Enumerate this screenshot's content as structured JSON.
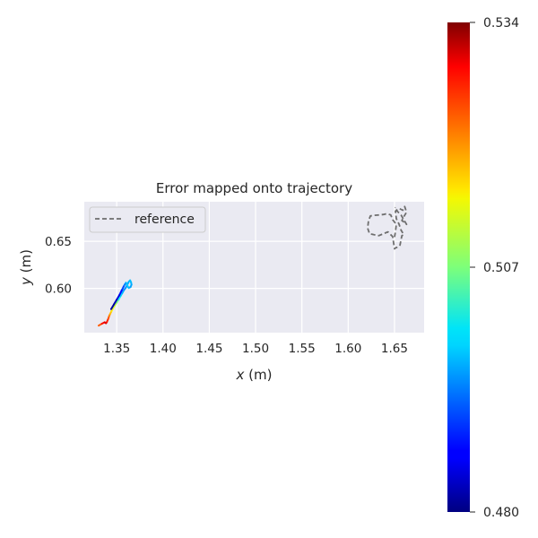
{
  "chart_data": {
    "type": "line",
    "title": "Error mapped onto trajectory",
    "xlabel": "x (m)",
    "ylabel": "y (m)",
    "xlim": [
      1.315,
      1.682
    ],
    "ylim": [
      0.553,
      0.692
    ],
    "xticks": [
      "1.35",
      "1.40",
      "1.45",
      "1.50",
      "1.55",
      "1.60",
      "1.65"
    ],
    "yticks": [
      "0.60",
      "0.65"
    ],
    "grid": true,
    "legend": {
      "placement": "top-left",
      "entries": [
        "reference"
      ]
    },
    "series": [
      {
        "name": "reference",
        "style": "dashed",
        "color": "#6e6e6e",
        "x": [
          1.65,
          1.651,
          1.652,
          1.648,
          1.646,
          1.643,
          1.64,
          1.638,
          1.634,
          1.628,
          1.624,
          1.622,
          1.621,
          1.623,
          1.628,
          1.633,
          1.638,
          1.643,
          1.648,
          1.65,
          1.651,
          1.654,
          1.656,
          1.658,
          1.66,
          1.657,
          1.655,
          1.652,
          1.651,
          1.655,
          1.659,
          1.661,
          1.663,
          1.66,
          1.658,
          1.661,
          1.663,
          1.66,
          1.657,
          1.652,
          1.65,
          1.651
        ],
        "y": [
          0.6545,
          0.66,
          0.668,
          0.673,
          0.678,
          0.679,
          0.679,
          0.6785,
          0.678,
          0.6775,
          0.677,
          0.672,
          0.664,
          0.658,
          0.657,
          0.656,
          0.658,
          0.66,
          0.655,
          0.642,
          0.643,
          0.644,
          0.646,
          0.656,
          0.657,
          0.662,
          0.668,
          0.674,
          0.682,
          0.685,
          0.683,
          0.687,
          0.681,
          0.676,
          0.672,
          0.67,
          0.668,
          0.673,
          0.678,
          0.683,
          0.685,
          0.686
        ]
      },
      {
        "name": "",
        "style": "colormapped",
        "colormap": "jet",
        "x": [
          1.3305,
          1.334,
          1.337,
          1.3385,
          1.3395,
          1.341,
          1.342,
          1.343,
          1.3445,
          1.346,
          1.348,
          1.35,
          1.352,
          1.354,
          1.356,
          1.358,
          1.36,
          1.3615,
          1.363,
          1.3645,
          1.3655,
          1.366,
          1.365,
          1.363,
          1.362,
          1.361,
          1.36,
          1.359,
          1.3575,
          1.3555,
          1.353,
          1.35,
          1.347,
          1.344
        ],
        "y": [
          0.5605,
          0.5625,
          0.564,
          0.563,
          0.5645,
          0.568,
          0.571,
          0.573,
          0.576,
          0.579,
          0.582,
          0.585,
          0.588,
          0.5915,
          0.595,
          0.5985,
          0.601,
          0.604,
          0.607,
          0.6085,
          0.6065,
          0.604,
          0.6015,
          0.6005,
          0.602,
          0.6045,
          0.606,
          0.6045,
          0.602,
          0.598,
          0.593,
          0.588,
          0.583,
          0.578
        ],
        "error": [
          0.52,
          0.525,
          0.528,
          0.53,
          0.527,
          0.524,
          0.522,
          0.518,
          0.516,
          0.513,
          0.511,
          0.509,
          0.504,
          0.499,
          0.497,
          0.495,
          0.494,
          0.495,
          0.496,
          0.497,
          0.497,
          0.496,
          0.495,
          0.496,
          0.497,
          0.498,
          0.497,
          0.495,
          0.492,
          0.489,
          0.486,
          0.484,
          0.482,
          0.481
        ]
      }
    ],
    "colorbar": {
      "colormap": "jet",
      "range": [
        0.48,
        0.534
      ],
      "ticks": [
        "0.480",
        "0.507",
        "0.534"
      ],
      "tick_values": [
        0.48,
        0.507,
        0.534
      ]
    }
  },
  "colors": {
    "axes_bg": "#eaeaf2",
    "grid": "#ffffff",
    "text": "#262626",
    "reference": "#6e6e6e"
  }
}
